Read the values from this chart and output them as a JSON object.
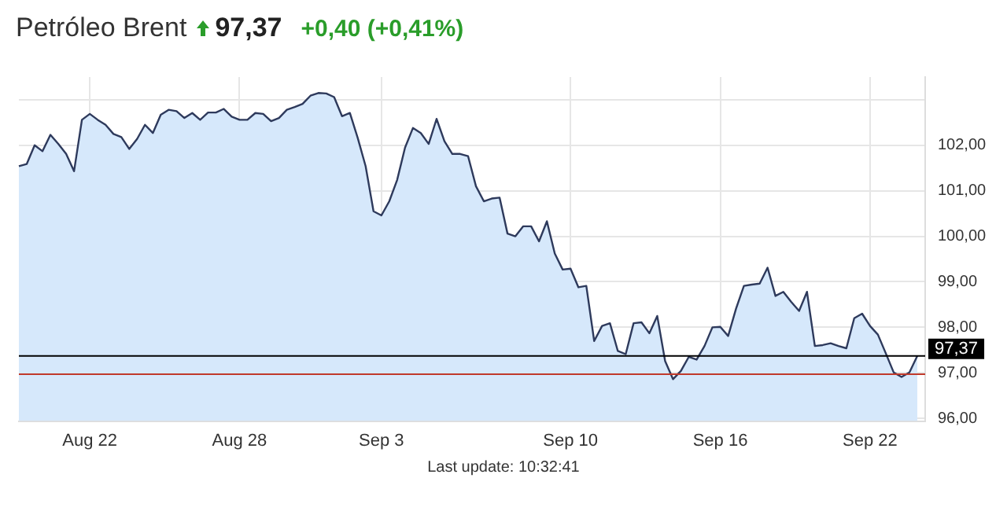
{
  "chart_data": {
    "type": "area",
    "title": "Petróleo Brent",
    "subtitle": "97,37",
    "annotations": [
      "+0,40 (+0,41%)",
      "Last update: 10:32:41"
    ],
    "categories": [
      null,
      null,
      null,
      null,
      null,
      null,
      null,
      null,
      null,
      "Aug 22",
      null,
      null,
      null,
      null,
      null,
      null,
      null,
      null,
      null,
      null,
      null,
      null,
      null,
      null,
      null,
      null,
      null,
      null,
      "Aug 28",
      null,
      null,
      null,
      null,
      null,
      null,
      null,
      null,
      null,
      null,
      null,
      null,
      null,
      null,
      null,
      null,
      null,
      "Sep 3",
      null,
      null,
      null,
      null,
      null,
      null,
      null,
      null,
      null,
      null,
      null,
      null,
      null,
      null,
      null,
      null,
      null,
      null,
      null,
      null,
      null,
      null,
      null,
      "Sep 10",
      null,
      null,
      null,
      null,
      null,
      null,
      null,
      null,
      null,
      null,
      null,
      null,
      null,
      null,
      null,
      null,
      null,
      null,
      "Sep 16",
      null,
      null,
      null,
      null,
      null,
      null,
      null,
      null,
      null,
      null,
      null,
      null,
      null,
      null,
      null,
      null,
      null,
      null,
      "Sep 22",
      null,
      null,
      null,
      null,
      null,
      null,
      null
    ],
    "series": [
      {
        "color": "#2e3a5c",
        "values": [
          101.54,
          101.59,
          102.0,
          101.87,
          102.23,
          102.03,
          101.81,
          101.43,
          102.56,
          102.69,
          102.56,
          102.45,
          102.25,
          102.18,
          101.92,
          102.14,
          102.45,
          102.27,
          102.67,
          102.78,
          102.75,
          102.6,
          102.71,
          102.56,
          102.72,
          102.72,
          102.8,
          102.63,
          102.56,
          102.56,
          102.71,
          102.69,
          102.53,
          102.6,
          102.78,
          102.84,
          102.91,
          103.09,
          103.15,
          103.14,
          103.06,
          102.64,
          102.71,
          102.16,
          101.54,
          100.55,
          100.46,
          100.77,
          101.24,
          101.95,
          102.38,
          102.27,
          102.03,
          102.58,
          102.09,
          101.81,
          101.81,
          101.76,
          101.1,
          100.77,
          100.83,
          100.85,
          100.06,
          100.0,
          100.22,
          100.22,
          99.89,
          100.33,
          99.62,
          99.27,
          99.29,
          98.88,
          98.91,
          97.7,
          98.03,
          98.09,
          97.48,
          97.41,
          98.09,
          98.11,
          97.87,
          98.25,
          97.26,
          96.86,
          97.04,
          97.35,
          97.29,
          97.59,
          98.0,
          98.01,
          97.81,
          98.41,
          98.91,
          98.94,
          98.96,
          99.31,
          98.69,
          98.78,
          98.56,
          98.36,
          98.78,
          97.59,
          97.61,
          97.65,
          97.59,
          97.54,
          98.2,
          98.3,
          98.03,
          97.84,
          97.43,
          97.01,
          96.91,
          97.01,
          97.37,
          null
        ]
      }
    ],
    "ylim": [
      95.94,
      103.5
    ],
    "yticks": [
      {
        "value": 96,
        "label": "96,00"
      },
      {
        "value": 97,
        "label": "97,00"
      },
      {
        "value": 98,
        "label": "98,00"
      },
      {
        "value": 99,
        "label": "99,00"
      },
      {
        "value": 100,
        "label": "100,00"
      },
      {
        "value": 101,
        "label": "101,00"
      },
      {
        "value": 102,
        "label": "102,00"
      },
      {
        "value": 103,
        "label": null
      }
    ],
    "ref_lines": [
      {
        "axis": "y",
        "value": 97.37,
        "label": "97,37",
        "color": "#000000"
      },
      {
        "axis": "y",
        "value": 96.97,
        "color": "#c0392b"
      }
    ],
    "grid": true,
    "legend": false,
    "marker": "none",
    "line_style": "solid"
  }
}
